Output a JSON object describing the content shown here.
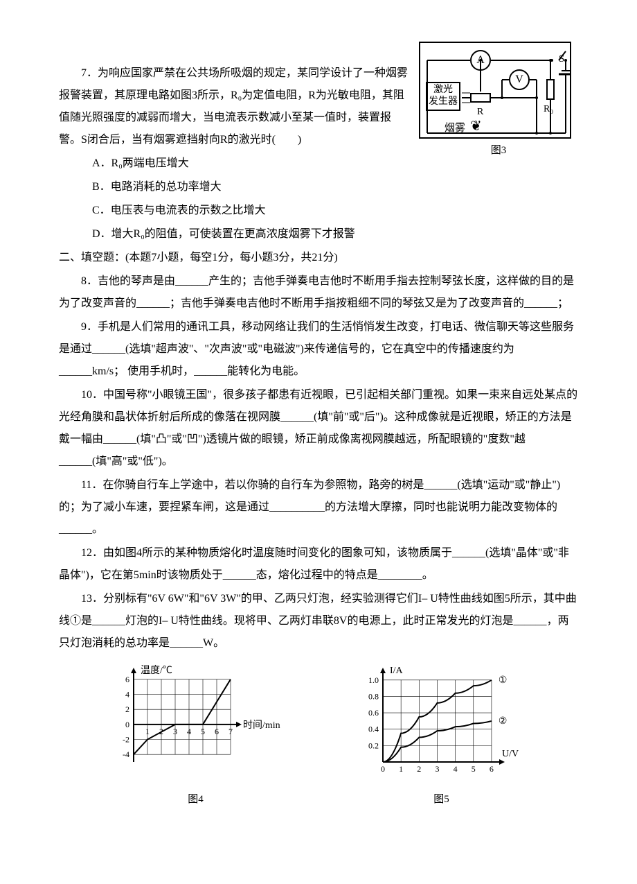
{
  "q7": {
    "text": "7．为响应国家严禁在公共场所吸烟的规定，某同学设计了一种烟雾报警装置，其原理电路如图3所示，R₀为定值电阻，R为光敏电阻，其阻值随光照强度的减弱而增大，当电流表示数减小至某一值时，装置报警。S闭合后，当有烟雾遮挡射向R的激光时(　　)",
    "options": {
      "A": "A．R₀两端电压增大",
      "B": "B．电路消耗的总功率增大",
      "C": "C．电压表与电流表的示数之比增大",
      "D": "D．增大R₀的阻值，可使装置在更高浓度烟雾下才报警"
    }
  },
  "section2": "二、填空题：(本题7小题，每空1分，每小题3分，共21分)",
  "q8": "8．吉他的琴声是由______产生的；吉他手弹奏电吉他时不断用手指去控制琴弦长度，这样做的目的是为了改变声音的______；吉他手弹奏电吉他时不断用手指按粗细不同的琴弦又是为了改变声音的______；",
  "q9": "9．手机是人们常用的通讯工具，移动网络让我们的生活悄悄发生改变，打电话、微信聊天等这些服务是通过______(选填\"超声波\"、\"次声波\"或\"电磁波\")来传递信号的，它在真空中的传播速度约为______km/s； 使用手机时，______能转化为电能。",
  "q10": "10．中国号称\"小眼镜王国\"，很多孩子都患有近视眼，已引起相关部门重视。如果一束来自远处某点的光经角膜和晶状体折射后所成的像落在视网膜______(填\"前\"或\"后\")。这种成像就是近视眼，矫正的方法是戴一幅由______(填\"凸\"或\"凹\")透镜片做的眼镜，矫正前成像离视网膜越远，所配眼镜的\"度数\"越______(填\"高\"或\"低\")。",
  "q11": "11．在你骑自行车上学途中，若以你骑的自行车为参照物，路旁的树是______(选填\"运动\"或\"静止\")的；为了减小车速，要捏紧车闸，这是通过__________的方法增大摩擦，同时也能说明力能改变物体的______。",
  "q12": "12．由如图4所示的某种物质熔化时温度随时间变化的图象可知，该物质属于______(选填\"晶体\"或\"非晶体\")，它在第5min时该物质处于______态，熔化过程中的特点是________。",
  "q13": "13．分别标有\"6V 6W\"和\"6V 3W\"的甲、乙两只灯泡，经实验测得它们I– U特性曲线如图5所示，其中曲线①是______灯泡的I– U特性曲线。现将甲、乙两灯串联8V的电源上，此时正常发光的灯泡是______，两只灯泡消耗的总功率是______W。",
  "circuit": {
    "labels": {
      "laser": "激光\n发生器",
      "smoke": "烟雾",
      "R": "R",
      "R0": "R₀",
      "S": "S",
      "A": "A",
      "V": "V",
      "caption": "图3"
    },
    "colors": {
      "stroke": "#000000",
      "bg": "#ffffff"
    }
  },
  "chart4": {
    "type": "line",
    "caption": "图4",
    "xlabel": "时间/min",
    "ylabel": "温度/℃",
    "x_ticks": [
      1,
      2,
      3,
      4,
      5,
      6,
      7
    ],
    "y_ticks": [
      -4,
      -2,
      0,
      2,
      4,
      6
    ],
    "xlim": [
      0,
      7.5
    ],
    "ylim": [
      -5,
      7
    ],
    "data_x": [
      0,
      1,
      3,
      5,
      7
    ],
    "data_y": [
      -4,
      -2,
      0,
      0,
      6
    ],
    "line_color": "#000000",
    "line_width": 2,
    "grid_color": "#000000",
    "bg_color": "#ffffff",
    "label_fontsize": 14
  },
  "chart5": {
    "type": "line",
    "caption": "图5",
    "xlabel": "U/V",
    "ylabel": "I/A",
    "x_ticks": [
      0,
      1,
      2,
      3,
      4,
      5,
      6
    ],
    "y_ticks": [
      0,
      0.2,
      0.4,
      0.6,
      0.8,
      1.0
    ],
    "xlim": [
      0,
      6.5
    ],
    "ylim": [
      0,
      1.1
    ],
    "series": [
      {
        "label": "①",
        "data_x": [
          0,
          1,
          2,
          3,
          4,
          5,
          6
        ],
        "data_y": [
          0,
          0.35,
          0.55,
          0.72,
          0.84,
          0.93,
          1.0
        ],
        "color": "#000000"
      },
      {
        "label": "②",
        "data_x": [
          0,
          1,
          2,
          3,
          4,
          5,
          6
        ],
        "data_y": [
          0,
          0.18,
          0.3,
          0.38,
          0.43,
          0.47,
          0.5
        ],
        "color": "#000000"
      }
    ],
    "line_width": 2,
    "grid_color": "#000000",
    "bg_color": "#ffffff",
    "label_fontsize": 14
  }
}
